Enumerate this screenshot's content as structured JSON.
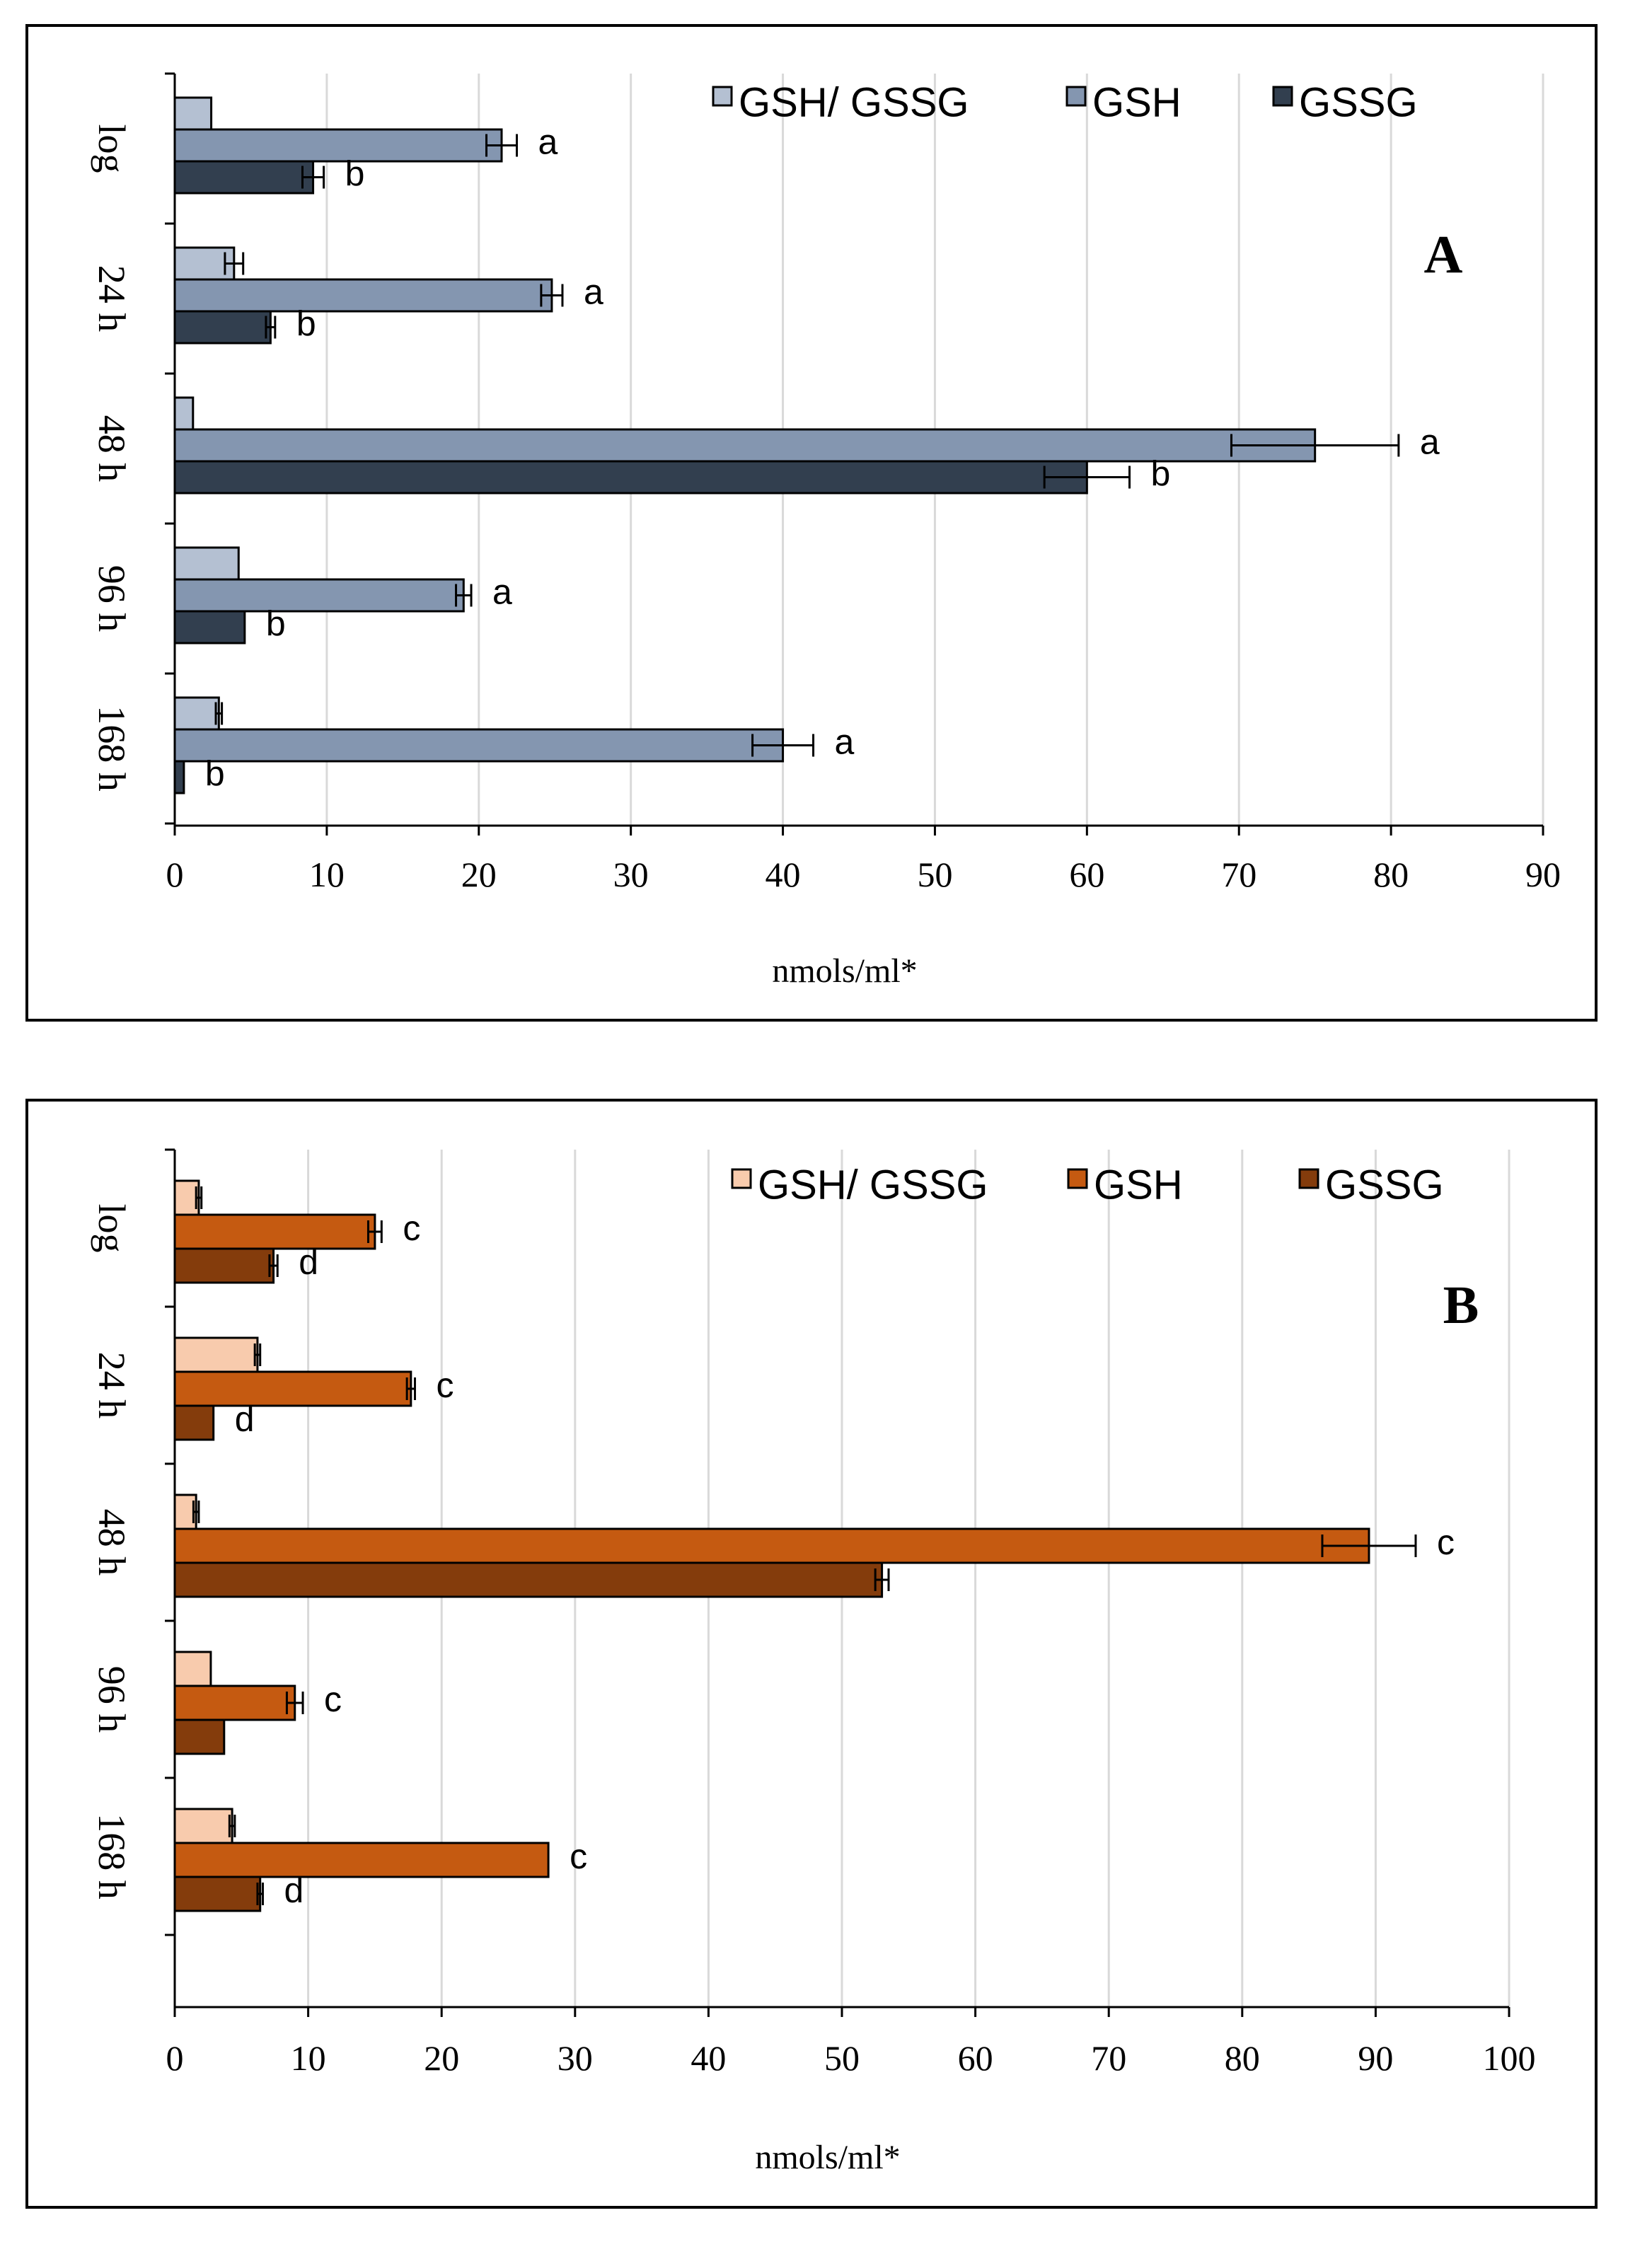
{
  "chart_data": [
    {
      "type": "bar",
      "orientation": "horizontal",
      "panel_label": "A",
      "xlabel": "nmols/ml*",
      "xlim": [
        0,
        90
      ],
      "xticks": [
        0,
        10,
        20,
        30,
        40,
        50,
        60,
        70,
        80,
        90
      ],
      "categories": [
        "log",
        "24 h",
        "48 h",
        "96 h",
        "168 h"
      ],
      "grid": true,
      "legend_position": "top",
      "series": [
        {
          "name": "GSH/ GSSG",
          "color": "#b4c0d2",
          "values": [
            2.4,
            3.9,
            1.2,
            4.2,
            2.9
          ],
          "errors": [
            0,
            0.6,
            0,
            0,
            0.2
          ],
          "labels": [
            "",
            "",
            "",
            "",
            ""
          ]
        },
        {
          "name": "GSH",
          "color": "#8496b0",
          "values": [
            21.5,
            24.8,
            75.0,
            19.0,
            40.0
          ],
          "errors": [
            1.0,
            0.7,
            5.5,
            0.5,
            2.0
          ],
          "labels": [
            "a",
            "a",
            "a",
            "a",
            "a"
          ]
        },
        {
          "name": "GSSG",
          "color": "#323f4f",
          "values": [
            9.1,
            6.3,
            60.0,
            4.6,
            0.6
          ],
          "errors": [
            0.7,
            0.3,
            2.8,
            0,
            0
          ],
          "labels": [
            "b",
            "b",
            "b",
            "b",
            "b"
          ]
        }
      ]
    },
    {
      "type": "bar",
      "orientation": "horizontal",
      "panel_label": "B",
      "xlabel": "nmols/ml*",
      "xlim": [
        0,
        100
      ],
      "xticks": [
        0,
        10,
        20,
        30,
        40,
        50,
        60,
        70,
        80,
        90,
        100
      ],
      "categories": [
        "log",
        "24 h",
        "48 h",
        "96 h",
        "168 h"
      ],
      "grid": true,
      "legend_position": "top",
      "series": [
        {
          "name": "GSH/ GSSG",
          "color": "#f8cbad",
          "values": [
            1.8,
            6.2,
            1.6,
            2.7,
            4.3
          ],
          "errors": [
            0.2,
            0.2,
            0.2,
            0,
            0.2
          ],
          "labels": [
            "",
            "",
            "",
            "",
            ""
          ]
        },
        {
          "name": "GSH",
          "color": "#c55a11",
          "values": [
            15.0,
            17.7,
            89.5,
            9.0,
            28.0
          ],
          "errors": [
            0.5,
            0.3,
            3.5,
            0.6,
            0
          ],
          "labels": [
            "c",
            "c",
            "c",
            "c",
            "c"
          ]
        },
        {
          "name": "GSSG",
          "color": "#843c0c",
          "values": [
            7.4,
            2.9,
            53.0,
            3.7,
            6.4
          ],
          "errors": [
            0.3,
            0,
            0.5,
            0,
            0.2
          ],
          "labels": [
            "d",
            "d",
            "",
            "",
            "d"
          ]
        }
      ]
    }
  ]
}
